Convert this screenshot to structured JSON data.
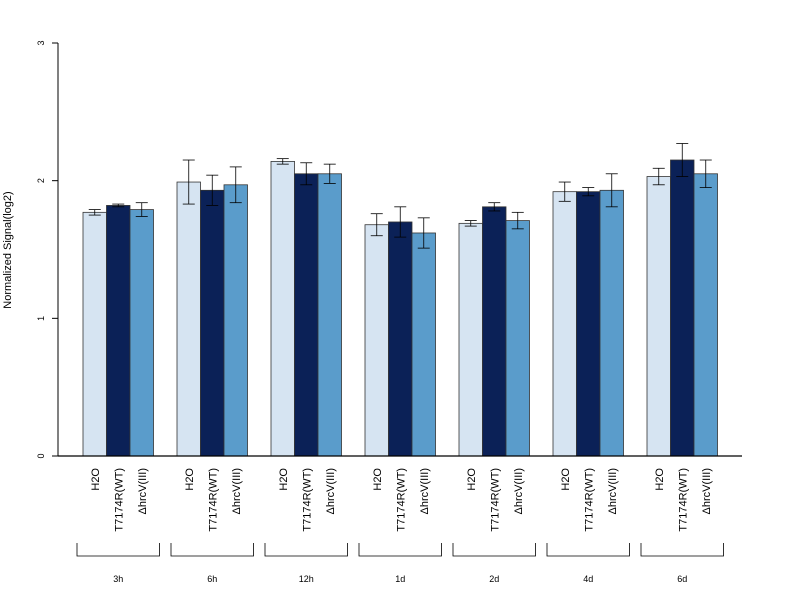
{
  "chart_data": {
    "type": "bar",
    "ylabel": "Normalized Signal(log2)",
    "xlabel": "",
    "ylim": [
      0,
      3
    ],
    "y_ticks": [
      "0",
      "1",
      "2",
      "3"
    ],
    "grid": false,
    "bar_labels": [
      "H2O",
      "T7174R(WT)",
      "ΔhrcV(III)"
    ],
    "colors": [
      "#d6e4f2",
      "#0b2157",
      "#5a9ccb"
    ],
    "groups": [
      {
        "label": "3h",
        "values": [
          1.77,
          1.82,
          1.79
        ],
        "errors": [
          0.02,
          0.01,
          0.05
        ]
      },
      {
        "label": "6h",
        "values": [
          1.99,
          1.93,
          1.97
        ],
        "errors": [
          0.16,
          0.11,
          0.13
        ]
      },
      {
        "label": "12h",
        "values": [
          2.14,
          2.05,
          2.05
        ],
        "errors": [
          0.02,
          0.08,
          0.07
        ]
      },
      {
        "label": "1d",
        "values": [
          1.68,
          1.7,
          1.62
        ],
        "errors": [
          0.08,
          0.11,
          0.11
        ]
      },
      {
        "label": "2d",
        "values": [
          1.69,
          1.81,
          1.71
        ],
        "errors": [
          0.02,
          0.03,
          0.06
        ]
      },
      {
        "label": "4d",
        "values": [
          1.92,
          1.92,
          1.93
        ],
        "errors": [
          0.07,
          0.03,
          0.12
        ]
      },
      {
        "label": "6d",
        "values": [
          2.03,
          2.15,
          2.05
        ],
        "errors": [
          0.06,
          0.12,
          0.1
        ]
      }
    ]
  }
}
